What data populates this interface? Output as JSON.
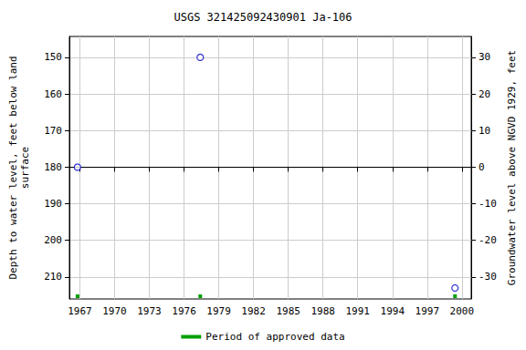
{
  "chart_data": {
    "type": "scatter",
    "title": "USGS 321425092430901 Ja-106",
    "y_label": "Depth to water level, feet below land\nsurface",
    "y2_label": "Groundwater level above NGVD 1929, feet",
    "x": [
      1966.8,
      1977.4,
      1999.4
    ],
    "values": [
      180,
      150,
      213
    ],
    "color": "#0000cc",
    "marker": "circle",
    "xlim": [
      1966.1,
      2000.8
    ],
    "xticks": [
      1967,
      1970,
      1973,
      1976,
      1979,
      1982,
      1985,
      1988,
      1991,
      1994,
      1997,
      2000
    ],
    "ylim": [
      144.3,
      216
    ],
    "yticks": [
      150,
      160,
      170,
      180,
      190,
      200,
      210
    ],
    "y2lim": [
      35.7,
      -36
    ],
    "y2ticks": [
      30,
      20,
      10,
      0,
      -10,
      -20,
      -30
    ],
    "grid": true,
    "legend": "bottom",
    "approved": {
      "name": "Period of approved data",
      "x": [
        1966.8,
        1977.4,
        1999.4
      ],
      "color": "#00a000"
    }
  }
}
